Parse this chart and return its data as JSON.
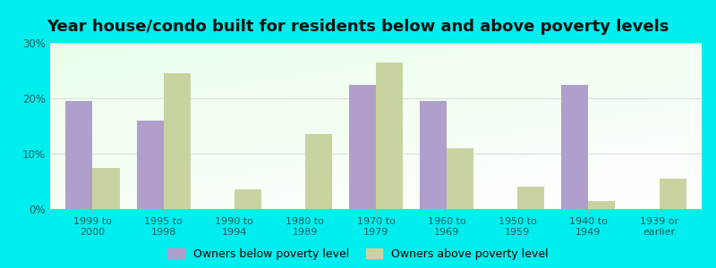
{
  "title": "Year house/condo built for residents below and above poverty levels",
  "categories": [
    "1999 to\n2000",
    "1995 to\n1998",
    "1990 to\n1994",
    "1980 to\n1989",
    "1970 to\n1979",
    "1960 to\n1969",
    "1950 to\n1959",
    "1940 to\n1949",
    "1939 or\nearlier"
  ],
  "below_poverty": [
    19.5,
    16.0,
    0,
    0,
    22.5,
    19.5,
    0,
    22.5,
    0
  ],
  "above_poverty": [
    7.5,
    24.5,
    3.5,
    13.5,
    26.5,
    11.0,
    4.0,
    1.5,
    5.5
  ],
  "below_color": "#b09fcc",
  "above_color": "#c8d4a0",
  "background_color": "#00eeee",
  "ylim": [
    0,
    30
  ],
  "yticks": [
    0,
    10,
    20,
    30
  ],
  "ytick_labels": [
    "0%",
    "10%",
    "20%",
    "30%"
  ],
  "legend_below": "Owners below poverty level",
  "legend_above": "Owners above poverty level",
  "title_fontsize": 13,
  "bar_width": 0.38,
  "grid_color": "#dddddd",
  "text_color": "#1a5c5c"
}
